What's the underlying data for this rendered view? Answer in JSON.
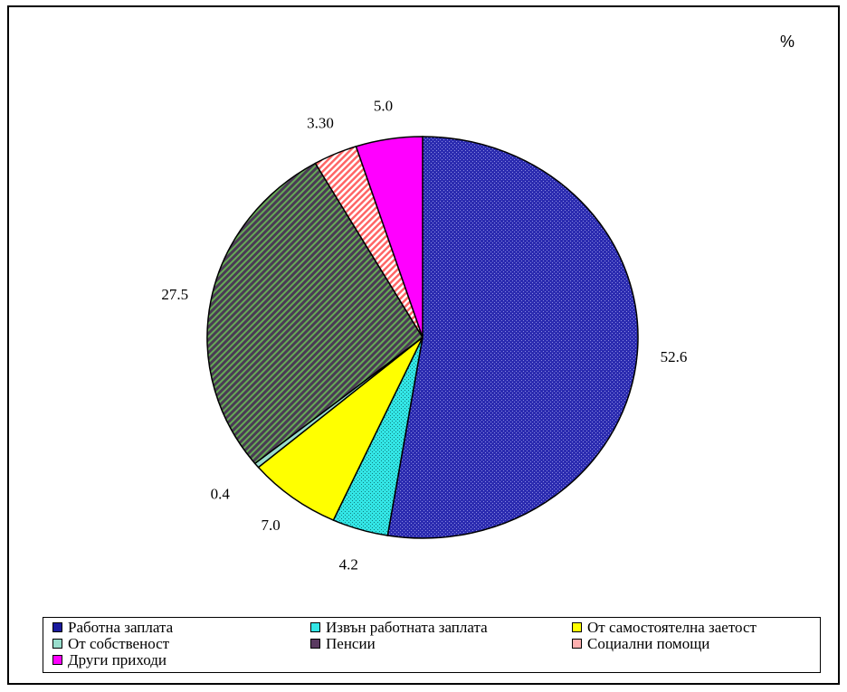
{
  "unit_label": "%",
  "chart_data": {
    "type": "pie",
    "title": "",
    "categories": [
      "Работна заплата",
      "Извън работната заплата",
      "От самостоятелна заетост",
      "От собственост",
      "Пенсии",
      "Социални помощи",
      "Други приходи"
    ],
    "values": [
      52.6,
      4.2,
      7.0,
      0.4,
      27.5,
      3.3,
      5.0
    ],
    "value_labels": [
      "52.6",
      "4.2",
      "7.0",
      "0.4",
      "27.5",
      "3.30",
      "5.0"
    ],
    "colors": [
      "#2b2bb0",
      "#33e6e6",
      "#ffff00",
      "#99ddcc",
      "#6a4a70",
      "#ffb0b0",
      "#ff00ff"
    ],
    "legend_placement": "bottom"
  },
  "legend": [
    {
      "label": "Работна заплата",
      "color": "#1a1a9e"
    },
    {
      "label": "Извън работната заплата",
      "color": "#33e6e6"
    },
    {
      "label": " От самостоятелна заетост",
      "color": "#ffff00"
    },
    {
      "label": "От собственост",
      "color": "#99ddcc"
    },
    {
      "label": "Пенсии",
      "color": "#5a3a60"
    },
    {
      "label": "Социални помощи",
      "color": "#ffb0b0"
    },
    {
      "label": "Други приходи",
      "color": "#ff00ff"
    }
  ]
}
